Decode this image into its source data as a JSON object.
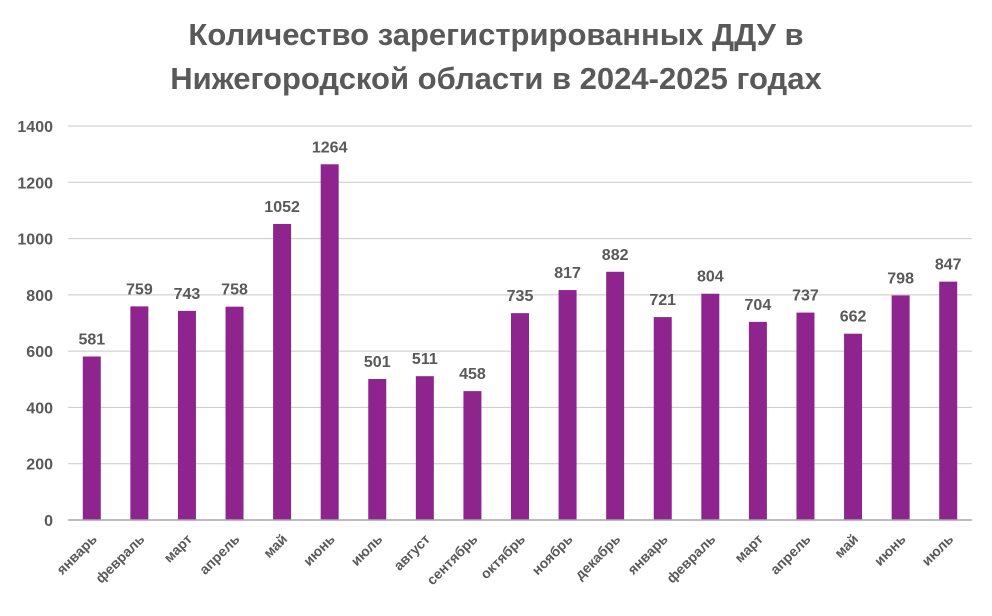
{
  "chart_data": {
    "type": "bar",
    "title": [
      "Количество зарегистрированных ДДУ в",
      "Нижегородской области в 2024-2025 годах"
    ],
    "categories": [
      "январь",
      "февраль",
      "март",
      "апрель",
      "май",
      "июнь",
      "июль",
      "август",
      "сентябрь",
      "октябрь",
      "ноябрь",
      "декабрь",
      "январь",
      "февраль",
      "март",
      "апрель",
      "май",
      "июнь",
      "июль"
    ],
    "series": [
      {
        "values": [
          581,
          759,
          743,
          758,
          1052,
          1264,
          501,
          511,
          458,
          735,
          817,
          882,
          721,
          804,
          704,
          737,
          662,
          798,
          847
        ]
      }
    ],
    "ylim": [
      0,
      1400
    ],
    "yticks": [
      0,
      200,
      400,
      600,
      800,
      1000,
      1200,
      1400
    ],
    "grid": true,
    "legend": "none",
    "data_labels": true,
    "colors": {
      "bar": "#8E258F",
      "text": "#595959",
      "grid": "#C8C8C8",
      "axis": "#A6A6A6"
    }
  }
}
